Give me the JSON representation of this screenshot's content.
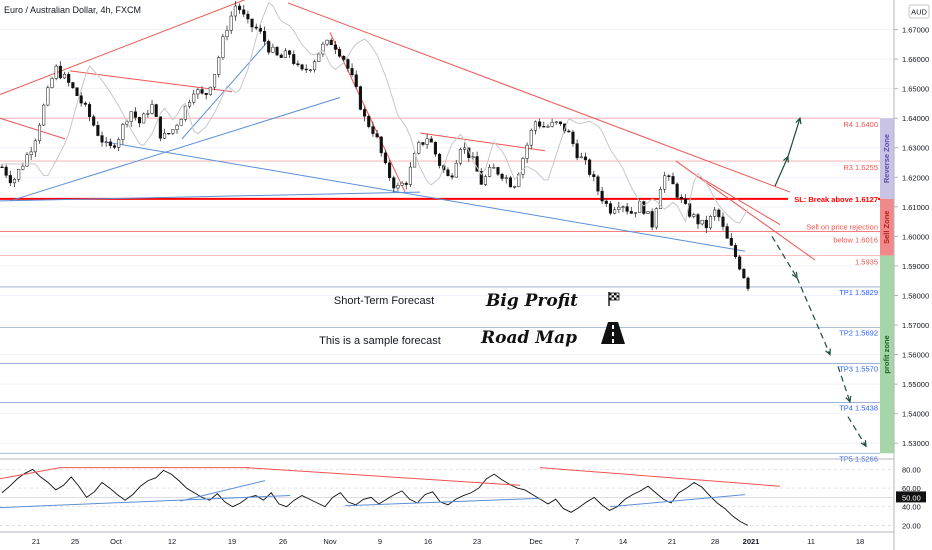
{
  "chart_data": {
    "type": "candlestick",
    "title": "Euro / Australian Dollar, 4h, FXCM",
    "currency_label": "AUD",
    "ylim": [
      1.525,
      1.68
    ],
    "y_ticks": [
      "1.67000",
      "1.66000",
      "1.65000",
      "1.64000",
      "1.63000",
      "1.62000",
      "1.61000",
      "1.60000",
      "1.59000",
      "1.58000",
      "1.57000",
      "1.56000",
      "1.55000",
      "1.54000",
      "1.53000"
    ],
    "x_ticks": [
      "21",
      "25",
      "Oct",
      "12",
      "19",
      "26",
      "Nov",
      "9",
      "16",
      "23",
      "Dec",
      "7",
      "14",
      "21",
      "28",
      "2021",
      "11",
      "18"
    ],
    "levels": [
      {
        "name": "R4",
        "value": 1.64,
        "label": "R4 1.6400",
        "color": "#f7a8a8",
        "text_color": "#ef5350"
      },
      {
        "name": "R3",
        "value": 1.6255,
        "label": "R3 1.6255",
        "color": "#f7a8a8",
        "text_color": "#ef5350"
      },
      {
        "name": "SL",
        "value": 1.6127,
        "label": "SL: Break above 1.6127",
        "color": "#ff0000",
        "text_color": "#ff0000"
      },
      {
        "name": "Sell",
        "value": 1.6016,
        "label": "below 1.6016",
        "color": "#ef5350",
        "text_color": "#ef5350"
      },
      {
        "name": "Level",
        "value": 1.5935,
        "label": "1.5935",
        "color": "#f7a8a8",
        "text_color": "#ef5350"
      },
      {
        "name": "TP1",
        "value": 1.5829,
        "label": "TP1 1.5829",
        "color": "#8fa8cf",
        "text_color": "#2962ff"
      },
      {
        "name": "TP2",
        "value": 1.5692,
        "label": "TP2 1.5692",
        "color": "#8fa8cf",
        "text_color": "#2962ff"
      },
      {
        "name": "TP3",
        "value": 1.557,
        "label": "TP3 1.5570",
        "color": "#8fa8cf",
        "text_color": "#2962ff"
      },
      {
        "name": "TP4",
        "value": 1.5438,
        "label": "TP4 1.5438",
        "color": "#8fa8cf",
        "text_color": "#2962ff"
      },
      {
        "name": "TP5",
        "value": 1.5266,
        "label": "TP5 1.5266",
        "color": "#8fa8cf",
        "text_color": "#2962ff"
      }
    ],
    "sell_note": "Sell on price rejection",
    "zones": [
      {
        "label": "Reverse Zone",
        "from": 1.6127,
        "to": 1.64,
        "color": "#c9c3e6",
        "text_color": "#5b4fa8"
      },
      {
        "label": "Sell Zone",
        "from": 1.5935,
        "to": 1.6127,
        "color": "#f08a8a",
        "text_color": "#b71c1c"
      },
      {
        "label": "profit zone",
        "from": 1.5266,
        "to": 1.5935,
        "color": "#a5d6a7",
        "text_color": "#1b5e20"
      }
    ],
    "price_path": [
      1.6235,
      1.6185,
      1.625,
      1.632,
      1.645,
      1.657,
      1.653,
      1.648,
      1.642,
      1.635,
      1.629,
      1.634,
      1.643,
      1.638,
      1.645,
      1.633,
      1.636,
      1.642,
      1.65,
      1.647,
      1.656,
      1.67,
      1.679,
      1.672,
      1.67,
      1.664,
      1.66,
      1.662,
      1.655,
      1.658,
      1.664,
      1.666,
      1.661,
      1.652,
      1.64,
      1.635,
      1.623,
      1.616,
      1.619,
      1.63,
      1.634,
      1.625,
      1.619,
      1.631,
      1.627,
      1.618,
      1.623,
      1.621,
      1.617,
      1.628,
      1.639,
      1.637,
      1.638,
      1.636,
      1.628,
      1.623,
      1.615,
      1.609,
      1.612,
      1.608,
      1.611,
      1.604,
      1.621,
      1.617,
      1.61,
      1.606,
      1.603,
      1.609,
      1.599,
      1.592,
      1.5835
    ],
    "candles_count": 180,
    "oscillator": {
      "y_ticks": [
        "80.00",
        "60.00",
        "50.00",
        "40.00",
        "20.00"
      ],
      "ylim": [
        15,
        88
      ],
      "path": [
        55,
        62,
        70,
        76,
        80,
        72,
        66,
        58,
        63,
        72,
        62,
        50,
        56,
        66,
        60,
        53,
        47,
        53,
        62,
        68,
        71,
        79,
        75,
        68,
        60,
        55,
        50,
        47,
        54,
        45,
        40,
        44,
        50,
        52,
        47,
        55,
        43,
        40,
        47,
        52,
        48,
        44,
        40,
        50,
        55,
        45,
        42,
        48,
        50,
        43,
        48,
        53,
        57,
        48,
        44,
        53,
        56,
        45,
        42,
        48,
        52,
        55,
        60,
        70,
        75,
        69,
        64,
        60,
        58,
        53,
        48,
        43,
        48,
        38,
        34,
        39,
        45,
        50,
        42,
        36,
        40,
        48,
        53,
        57,
        62,
        55,
        48,
        44,
        55,
        60,
        66,
        61,
        52,
        44,
        38,
        30,
        24,
        20
      ]
    }
  },
  "annotations": {
    "short_term": "Short-Term Forecast",
    "big_profit": "Big Profit",
    "sample": "This is a sample forecast",
    "road_map": "Road Map"
  }
}
